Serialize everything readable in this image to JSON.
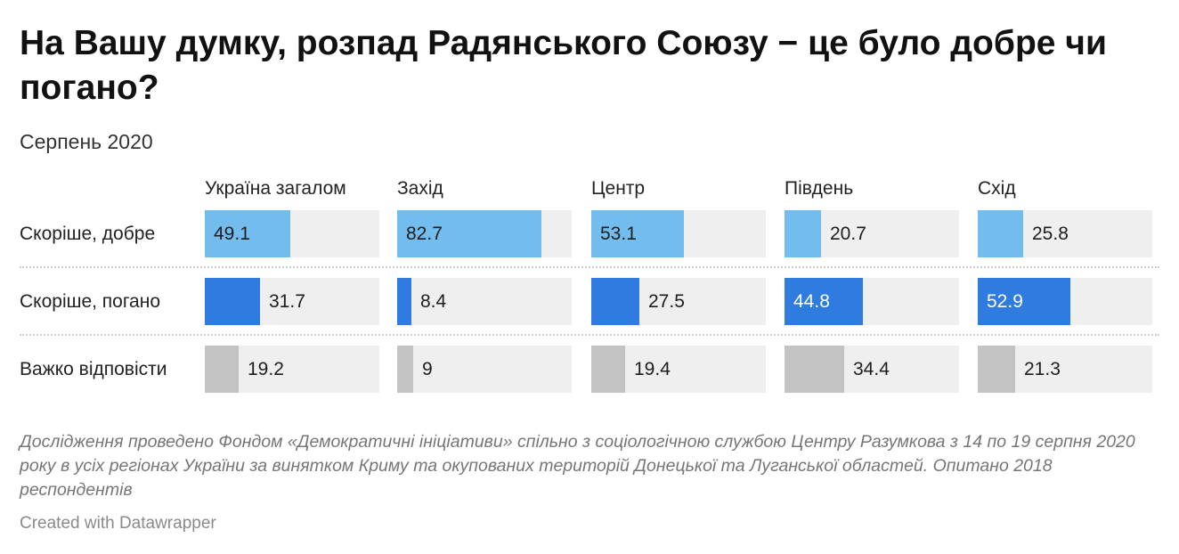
{
  "title": "На Вашу думку, розпад Радянського Союзу − це було добре чи погано?",
  "subtitle": "Серпень 2020",
  "notes": "Дослідження проведено Фондом «Демократичні ініціативи» спільно з соціологічною службою Центру Разумкова з 14 по 19 серпня 2020 року в усіх регіонах України за винятком Криму та окупованих територій Донецької та Луганської областей. Опитано 2018 респондентів",
  "credit": "Created with Datawrapper",
  "chart_data": {
    "type": "bar",
    "x_range": [
      0,
      100
    ],
    "columns": [
      "Україна загалом",
      "Захід",
      "Центр",
      "Південь",
      "Схід"
    ],
    "rows": [
      {
        "label": "Скоріше, добре",
        "color": "#72bdee",
        "values": [
          49.1,
          82.7,
          53.1,
          20.7,
          25.8
        ]
      },
      {
        "label": "Скоріше, погано",
        "color": "#2f7be0",
        "values": [
          31.7,
          8.4,
          27.5,
          44.8,
          52.9
        ]
      },
      {
        "label": "Важко відповісти",
        "color": "#c3c3c3",
        "values": [
          19.2,
          9,
          19.4,
          34.4,
          21.3
        ]
      }
    ]
  }
}
